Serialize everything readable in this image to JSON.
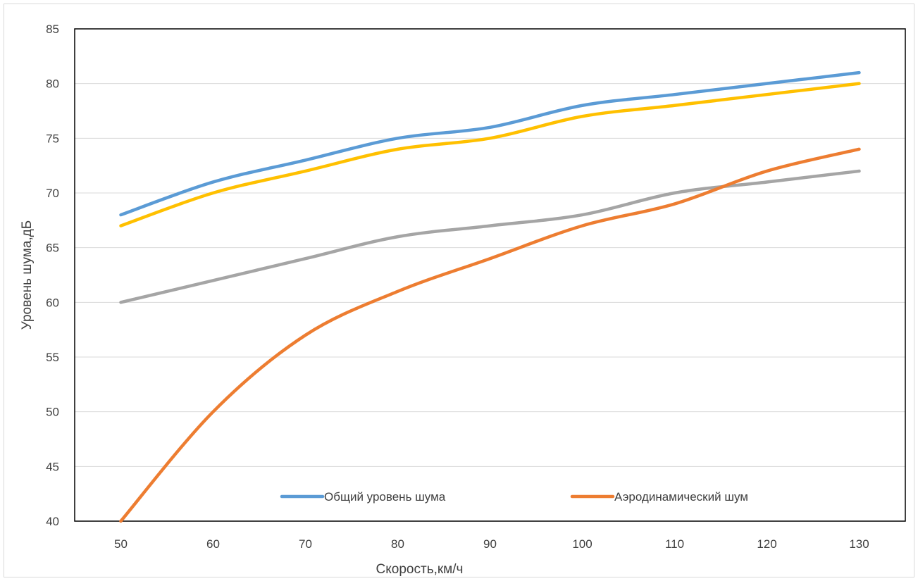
{
  "chart_data": {
    "type": "line",
    "xlabel": "Скорость,км/ч",
    "ylabel": "Уровень шума,дБ",
    "x": [
      50,
      60,
      70,
      80,
      90,
      100,
      110,
      120,
      130
    ],
    "xlim": [
      45,
      135
    ],
    "ylim": [
      40,
      85
    ],
    "y_ticks": [
      40,
      45,
      50,
      55,
      60,
      65,
      70,
      75,
      80,
      85
    ],
    "x_tick_labels": [
      "50",
      "60",
      "70",
      "80",
      "90",
      "100",
      "110",
      "120",
      "130"
    ],
    "y_tick_labels": [
      "40",
      "45",
      "50",
      "55",
      "60",
      "65",
      "70",
      "75",
      "80",
      "85"
    ],
    "grid": true,
    "legend_position": "bottom, inside plot",
    "series": [
      {
        "name": "Общий уровень шума",
        "color": "#5b9bd5",
        "values": [
          68,
          71,
          73,
          75,
          76,
          78,
          79,
          80,
          81
        ]
      },
      {
        "name": "",
        "color": "#ffc000",
        "values": [
          67,
          70,
          72,
          74,
          75,
          77,
          78,
          79,
          80
        ]
      },
      {
        "name": "",
        "color": "#a5a5a5",
        "values": [
          60,
          62,
          64,
          66,
          67,
          68,
          70,
          71,
          72
        ]
      },
      {
        "name": "Аэродинамический шум",
        "color": "#ed7d31",
        "values": [
          40,
          50,
          57,
          61,
          64,
          67,
          69,
          72,
          74
        ]
      }
    ]
  }
}
